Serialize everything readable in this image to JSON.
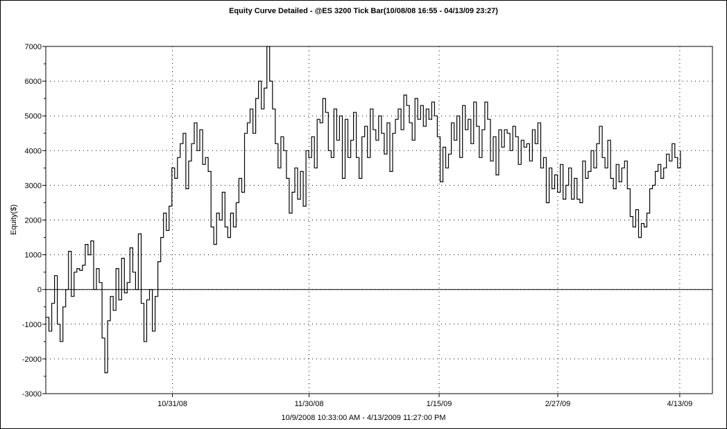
{
  "chart_data": {
    "type": "line",
    "title": "Equity Curve Detailed - @ES 3200 Tick Bar(10/08/08 16:55 - 04/13/09 23:27)",
    "xlabel": "10/9/2008 10:33:00 AM - 4/13/2009 11:27:00 PM",
    "ylabel": "Equity($)",
    "ylim": [
      -3000,
      7000
    ],
    "yticks": [
      -3000,
      -2000,
      -1000,
      0,
      1000,
      2000,
      3000,
      4000,
      5000,
      6000,
      7000
    ],
    "xticks": [
      "10/31/08",
      "11/30/08",
      "1/15/09",
      "2/27/09",
      "4/13/09"
    ],
    "grid": true,
    "series": [
      {
        "name": "",
        "values": [
          -800,
          -1200,
          -400,
          400,
          -1000,
          -1500,
          -500,
          0,
          1100,
          -200,
          500,
          600,
          550,
          700,
          1300,
          1000,
          1400,
          0,
          600,
          200,
          -1400,
          -2400,
          -900,
          -200,
          -600,
          600,
          -300,
          900,
          -100,
          200,
          1200,
          500,
          0,
          1600,
          -400,
          -1500,
          -300,
          0,
          -1200,
          -200,
          800,
          1500,
          2200,
          1700,
          2400,
          3500,
          3200,
          3800,
          4200,
          4500,
          2900,
          3700,
          4200,
          4800,
          4000,
          4600,
          3600,
          3800,
          3400,
          1800,
          1300,
          2200,
          2000,
          2800,
          1800,
          1500,
          2200,
          1800,
          2500,
          3200,
          2800,
          4500,
          4800,
          5200,
          4500,
          5500,
          6000,
          5200,
          5800,
          7000,
          6000,
          5200,
          4200,
          3500,
          4400,
          4000,
          3200,
          2200,
          2800,
          3500,
          2600,
          3400,
          2400,
          4000,
          3800,
          4400,
          3500,
          4900,
          4800,
          5500,
          5100,
          4000,
          3800,
          5200,
          4300,
          5000,
          3200,
          4900,
          3800,
          4300,
          5100,
          3800,
          3200,
          4400,
          4700,
          3800,
          5200,
          4600,
          4300,
          5000,
          4500,
          3900,
          4800,
          3400,
          4500,
          4900,
          5200,
          4600,
          5600,
          5300,
          4800,
          4300,
          5500,
          4900,
          5300,
          4700,
          5200,
          4900,
          5400,
          5000,
          4400,
          3100,
          4100,
          3500,
          3900,
          4800,
          4300,
          5000,
          3800,
          5300,
          4600,
          4900,
          4200,
          5400,
          4700,
          3800,
          4600,
          5400,
          4900,
          3700,
          4400,
          3300,
          4600,
          4100,
          4600,
          4500,
          4000,
          4700,
          4400,
          3600,
          4300,
          4100,
          4200,
          3700,
          4600,
          4200,
          4800,
          3500,
          3800,
          2500,
          3500,
          2900,
          3300,
          2800,
          3600,
          2600,
          3000,
          3500,
          2600,
          3200,
          2600,
          2500,
          3700,
          3200,
          3400,
          4000,
          3500,
          4200,
          4700,
          3800,
          3500,
          4300,
          3200,
          2900,
          3600,
          3100,
          3500,
          3700,
          2900,
          2100,
          1800,
          2300,
          1500,
          1900,
          1800,
          2200,
          2900,
          3000,
          3400,
          3600,
          3200,
          3500,
          3900,
          3700,
          4200,
          3800,
          3500,
          4000
        ]
      }
    ]
  }
}
